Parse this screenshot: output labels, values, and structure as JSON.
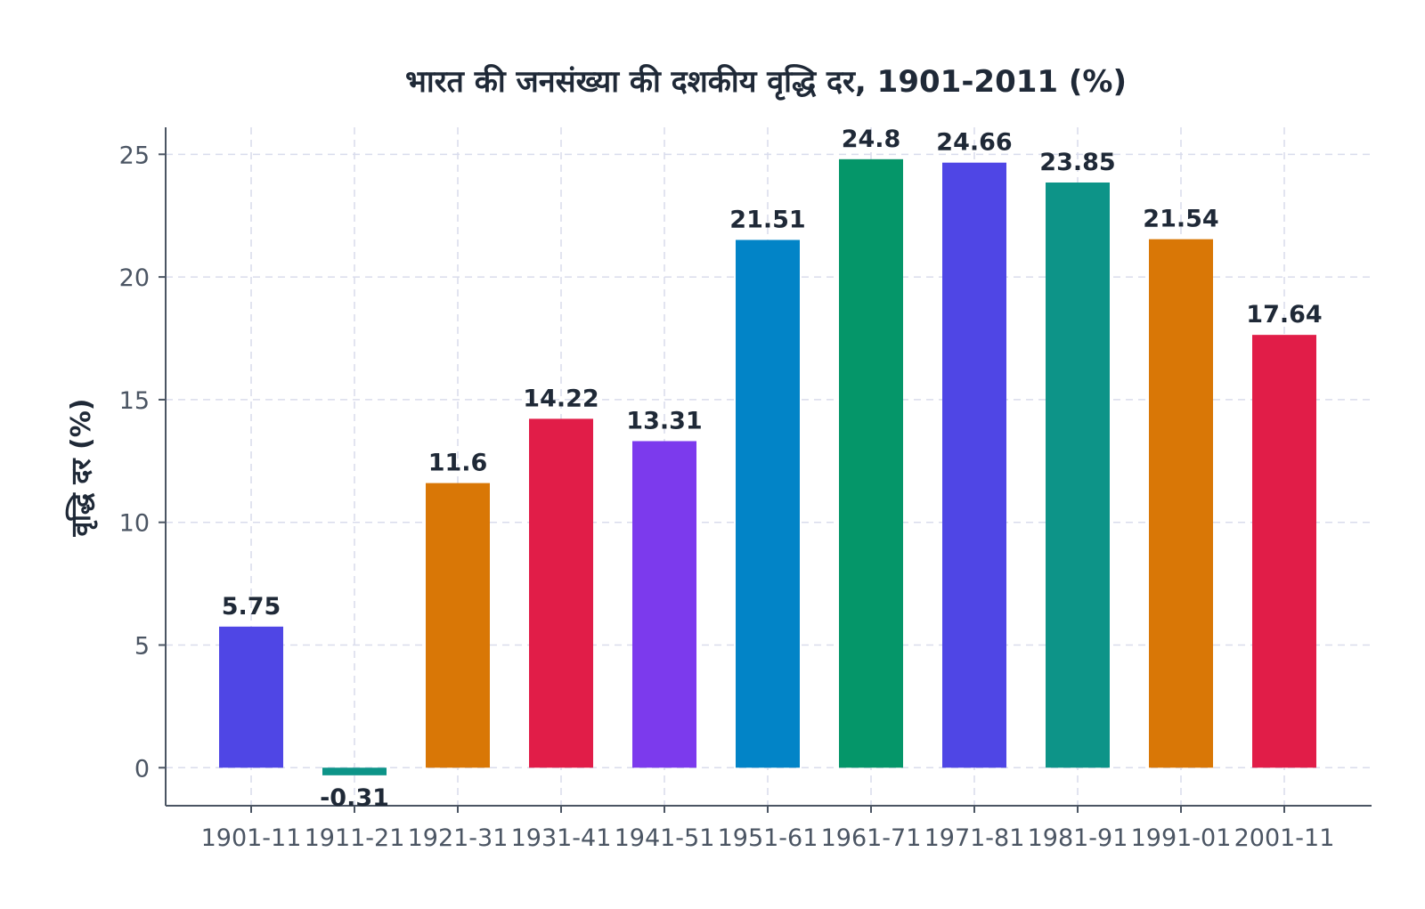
{
  "chart_data": {
    "type": "bar",
    "title": "भारत की जनसंख्या की दशकीय वृद्धि दर, 1901-2011 (%)",
    "xlabel": "",
    "ylabel": "वृद्धि दर (%)",
    "categories": [
      "1901-11",
      "1911-21",
      "1921-31",
      "1931-41",
      "1941-51",
      "1951-61",
      "1961-71",
      "1971-81",
      "1981-91",
      "1991-01",
      "2001-11"
    ],
    "values": [
      5.75,
      -0.31,
      11.6,
      14.22,
      13.31,
      21.51,
      24.8,
      24.66,
      23.85,
      21.54,
      17.64
    ],
    "value_labels": [
      "5.75",
      "-0.31",
      "11.6",
      "14.22",
      "13.31",
      "21.51",
      "24.8",
      "24.66",
      "23.85",
      "21.54",
      "17.64"
    ],
    "colors": [
      "#4f46e5",
      "#0d9488",
      "#d97706",
      "#e11d48",
      "#7c3aed",
      "#0284c7",
      "#059669",
      "#4f46e5",
      "#0d9488",
      "#d97706",
      "#e11d48"
    ],
    "yticks": [
      0,
      5,
      10,
      15,
      20,
      25
    ],
    "ytick_labels": [
      "0",
      "5",
      "10",
      "15",
      "20",
      "25"
    ],
    "ylim": [
      -1.55,
      26.1
    ],
    "grid": true,
    "legend": "none"
  }
}
